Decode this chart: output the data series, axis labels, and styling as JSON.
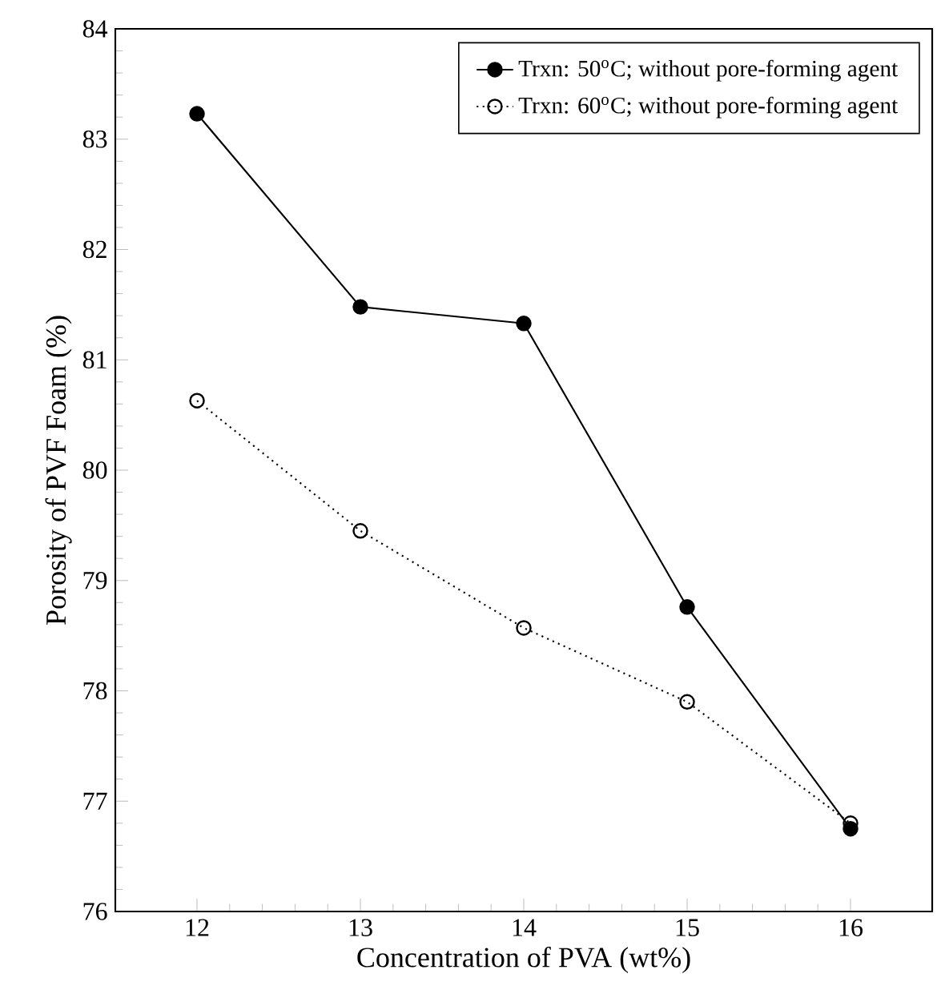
{
  "chart_data": {
    "type": "line",
    "xlabel": "Concentration of PVA (wt%)",
    "ylabel": "Porosity of PVF Foam (%)",
    "x": [
      12,
      13,
      14,
      15,
      16
    ],
    "series": [
      {
        "name": "Trxn: 50$^{o}$C; without pore-forming agent",
        "color": "#000000",
        "marker": "circle",
        "line_style": "solid",
        "values": [
          83.23,
          81.48,
          81.33,
          78.76,
          76.75
        ]
      },
      {
        "name": "Trxn: 60$^{o}$C; without pore-forming agent",
        "color": "#000000",
        "marker": "open circle",
        "line_style": "dotted",
        "values": [
          80.63,
          79.45,
          78.57,
          77.9,
          76.8
        ]
      }
    ],
    "xlim": [
      11.5,
      16.5
    ],
    "ylim": [
      76,
      84
    ],
    "xticks": [
      12,
      13,
      14,
      15,
      16
    ],
    "yticks": [
      76,
      77,
      78,
      79,
      80,
      81,
      82,
      83,
      84
    ],
    "grid": false,
    "legend": "top right"
  }
}
